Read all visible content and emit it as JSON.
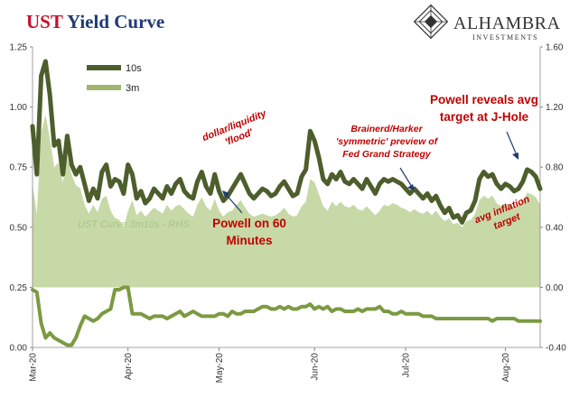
{
  "title": {
    "part1": "UST",
    "part2": " Yield Curve"
  },
  "logo": {
    "name": "ALHAMBRA",
    "sub": "INVESTMENTS"
  },
  "chart_data": {
    "type": "line",
    "x_ticks": [
      "Mar-20",
      "Apr-20",
      "May-20",
      "Jun-20",
      "Jul-20",
      "Aug-20"
    ],
    "left_axis": {
      "min": 0,
      "max": 1.25,
      "ticks": [
        "0.00",
        "0.25",
        "0.50",
        "0.75",
        "1.00",
        "1.25"
      ]
    },
    "right_axis": {
      "min": -0.4,
      "max": 1.6,
      "ticks": [
        "-0.40",
        "0.00",
        "0.40",
        "0.80",
        "1.20",
        "1.60"
      ]
    },
    "legend": {
      "position": "top-left"
    },
    "series": [
      {
        "name": "10s",
        "axis": "left",
        "color": "#4d5e2c",
        "values": [
          0.92,
          0.72,
          1.13,
          1.19,
          1.05,
          0.84,
          0.86,
          0.72,
          0.88,
          0.76,
          0.72,
          0.75,
          0.68,
          0.61,
          0.66,
          0.62,
          0.73,
          0.76,
          0.67,
          0.7,
          0.69,
          0.64,
          0.76,
          0.72,
          0.62,
          0.65,
          0.6,
          0.62,
          0.66,
          0.64,
          0.62,
          0.67,
          0.64,
          0.68,
          0.7,
          0.65,
          0.63,
          0.62,
          0.69,
          0.73,
          0.67,
          0.64,
          0.72,
          0.65,
          0.61,
          0.63,
          0.66,
          0.69,
          0.72,
          0.68,
          0.64,
          0.62,
          0.64,
          0.66,
          0.65,
          0.63,
          0.64,
          0.67,
          0.69,
          0.66,
          0.63,
          0.64,
          0.71,
          0.74,
          0.9,
          0.86,
          0.79,
          0.7,
          0.68,
          0.72,
          0.7,
          0.73,
          0.69,
          0.68,
          0.7,
          0.68,
          0.66,
          0.7,
          0.67,
          0.64,
          0.68,
          0.7,
          0.69,
          0.7,
          0.69,
          0.68,
          0.66,
          0.64,
          0.66,
          0.64,
          0.62,
          0.64,
          0.61,
          0.63,
          0.59,
          0.56,
          0.58,
          0.54,
          0.55,
          0.52,
          0.56,
          0.57,
          0.61,
          0.7,
          0.73,
          0.71,
          0.72,
          0.68,
          0.66,
          0.68,
          0.67,
          0.65,
          0.66,
          0.69,
          0.74,
          0.73,
          0.71,
          0.66
        ]
      },
      {
        "name": "3m",
        "axis": "left",
        "color": "#7b9a42",
        "values": [
          0.24,
          0.23,
          0.1,
          0.04,
          0.06,
          0.04,
          0.03,
          0.02,
          0.01,
          0.01,
          0.04,
          0.09,
          0.13,
          0.12,
          0.11,
          0.12,
          0.14,
          0.15,
          0.16,
          0.24,
          0.24,
          0.25,
          0.25,
          0.14,
          0.14,
          0.14,
          0.13,
          0.12,
          0.13,
          0.13,
          0.13,
          0.12,
          0.13,
          0.14,
          0.15,
          0.13,
          0.14,
          0.15,
          0.14,
          0.13,
          0.13,
          0.13,
          0.13,
          0.14,
          0.14,
          0.13,
          0.15,
          0.14,
          0.14,
          0.15,
          0.15,
          0.15,
          0.16,
          0.17,
          0.17,
          0.16,
          0.16,
          0.17,
          0.16,
          0.17,
          0.16,
          0.16,
          0.17,
          0.17,
          0.18,
          0.16,
          0.17,
          0.16,
          0.17,
          0.15,
          0.16,
          0.16,
          0.15,
          0.15,
          0.15,
          0.16,
          0.15,
          0.16,
          0.16,
          0.16,
          0.17,
          0.15,
          0.15,
          0.14,
          0.14,
          0.15,
          0.14,
          0.14,
          0.14,
          0.14,
          0.13,
          0.13,
          0.13,
          0.12,
          0.12,
          0.12,
          0.12,
          0.12,
          0.12,
          0.12,
          0.12,
          0.12,
          0.12,
          0.12,
          0.12,
          0.12,
          0.11,
          0.12,
          0.12,
          0.12,
          0.12,
          0.12,
          0.11,
          0.11,
          0.11,
          0.11,
          0.11,
          0.11
        ]
      },
      {
        "name": "UST Curve 3m10s - RHS",
        "axis": "right",
        "type": "area",
        "color": "#c6d9a7",
        "values": [
          0.68,
          0.49,
          1.03,
          1.15,
          0.99,
          0.8,
          0.83,
          0.7,
          0.87,
          0.75,
          0.68,
          0.66,
          0.55,
          0.49,
          0.55,
          0.5,
          0.59,
          0.61,
          0.51,
          0.46,
          0.45,
          0.39,
          0.51,
          0.58,
          0.48,
          0.51,
          0.47,
          0.5,
          0.53,
          0.51,
          0.49,
          0.55,
          0.51,
          0.54,
          0.55,
          0.52,
          0.49,
          0.47,
          0.55,
          0.6,
          0.54,
          0.51,
          0.59,
          0.51,
          0.47,
          0.5,
          0.51,
          0.55,
          0.58,
          0.53,
          0.49,
          0.47,
          0.48,
          0.49,
          0.48,
          0.47,
          0.48,
          0.5,
          0.53,
          0.49,
          0.47,
          0.48,
          0.54,
          0.57,
          0.72,
          0.7,
          0.62,
          0.54,
          0.51,
          0.57,
          0.54,
          0.57,
          0.54,
          0.53,
          0.55,
          0.52,
          0.51,
          0.54,
          0.51,
          0.48,
          0.51,
          0.55,
          0.54,
          0.56,
          0.55,
          0.53,
          0.52,
          0.5,
          0.52,
          0.5,
          0.49,
          0.51,
          0.48,
          0.51,
          0.47,
          0.44,
          0.46,
          0.42,
          0.43,
          0.4,
          0.44,
          0.45,
          0.49,
          0.58,
          0.61,
          0.59,
          0.61,
          0.56,
          0.54,
          0.56,
          0.55,
          0.53,
          0.55,
          0.58,
          0.63,
          0.62,
          0.6,
          0.55
        ]
      }
    ],
    "annotations": [
      {
        "id": "flood",
        "lines": [
          "dollar/liquidity",
          "'flood'"
        ]
      },
      {
        "id": "powell60",
        "lines": [
          "Powell on 60",
          "Minutes"
        ]
      },
      {
        "id": "brainerd",
        "lines": [
          "Brainerd/Harker",
          "'symmetric' preview of",
          "Fed Grand Strategy"
        ]
      },
      {
        "id": "jhole",
        "lines": [
          "Powell reveals avg",
          "target at J-Hole"
        ]
      },
      {
        "id": "avginfl",
        "lines": [
          "avg inflation",
          "target"
        ]
      }
    ]
  }
}
